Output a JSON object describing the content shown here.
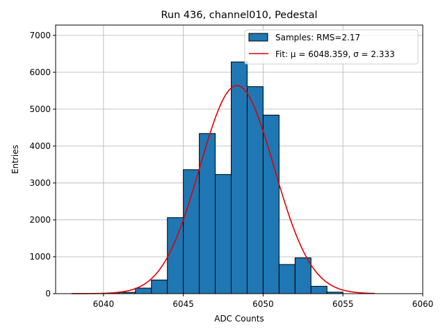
{
  "chart_data": {
    "type": "bar",
    "title": "Run 436, channel010, Pedestal",
    "xlabel": "ADC Counts",
    "ylabel": "Entries",
    "xlim": [
      6037,
      6060
    ],
    "ylim": [
      0,
      7280
    ],
    "xticks": [
      6040,
      6045,
      6050,
      6055,
      6060
    ],
    "yticks": [
      0,
      1000,
      2000,
      3000,
      4000,
      5000,
      6000,
      7000
    ],
    "grid": true,
    "legend_position": "top-right",
    "histogram": {
      "name": "Samples: RMS=2.17",
      "color": "#1f77b4",
      "edge_color": "#000000",
      "bin_edges": [
        6040,
        6041,
        6042,
        6043,
        6044,
        6045,
        6046,
        6047,
        6048,
        6049,
        6050,
        6051,
        6052,
        6053,
        6054,
        6055
      ],
      "counts": [
        8,
        35,
        150,
        370,
        2060,
        3360,
        4340,
        3230,
        6280,
        5610,
        4840,
        790,
        970,
        200,
        40
      ]
    },
    "fit": {
      "name": "Fit: μ = 6048.359, σ = 2.333",
      "color": "#e00000",
      "mu": 6048.359,
      "sigma": 2.333,
      "amplitude": 5640,
      "x_range": [
        6038,
        6057
      ]
    }
  }
}
